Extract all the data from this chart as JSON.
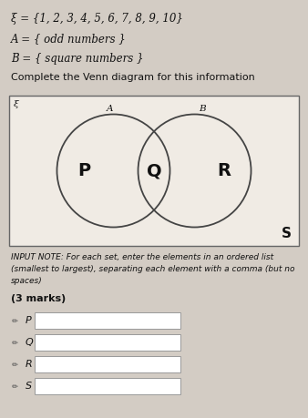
{
  "title_line1": "ξ = {1, 2, 3, 4, 5, 6, 7, 8, 9, 10}",
  "title_line2": "A = { odd numbers }",
  "title_line3": "B = { square numbers }",
  "title_line4": "Complete the Venn diagram for this information",
  "label_A": "A",
  "label_B": "B",
  "label_P": "P",
  "label_Q": "Q",
  "label_R": "R",
  "label_S": "S",
  "label_xi": "ξ",
  "input_note_line1": "INPUT NOTE: For each set, enter the elements in an ordered list",
  "input_note_line2": "(smallest to largest), separating each element with a comma (but no",
  "input_note_line3": "spaces)",
  "marks": "(3 marks)",
  "input_labels": [
    "P",
    "Q",
    "R",
    "S"
  ],
  "bg_color": "#d3ccc4",
  "box_color": "#f0ebe4",
  "circle_edge_color": "#444444",
  "text_color": "#111111"
}
